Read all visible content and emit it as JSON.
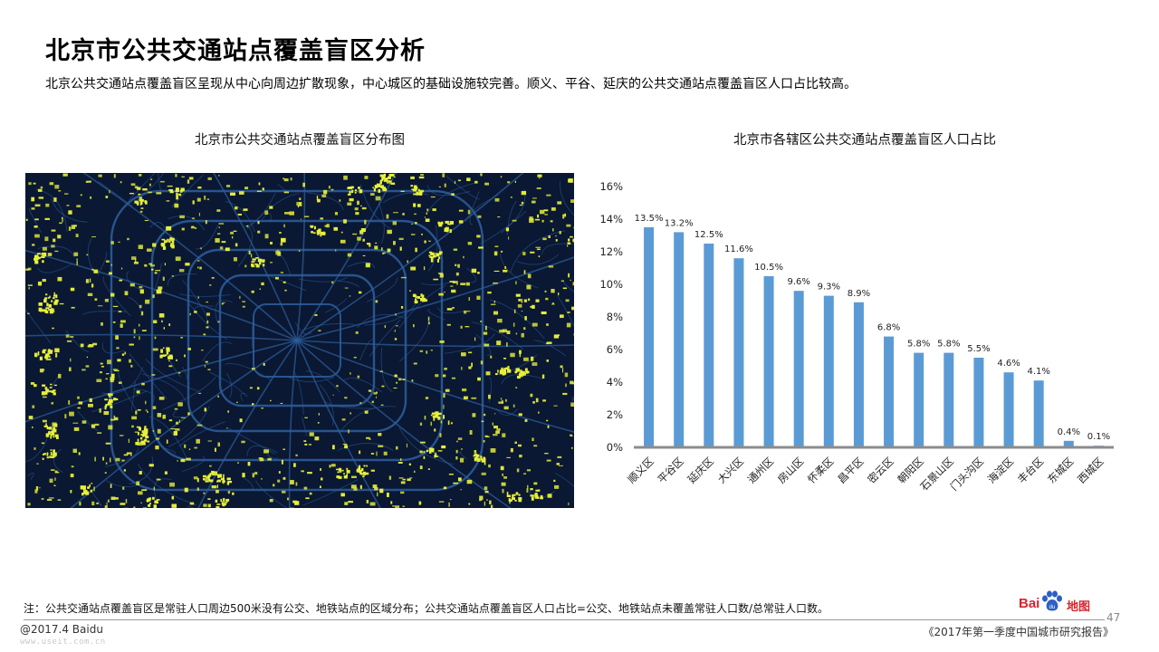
{
  "header": {
    "title": "北京市公共交通站点覆盖盲区分析",
    "subtitle": "北京公共交通站点覆盖盲区呈现从中心向周边扩散现象，中心城区的基础设施较完善。顺义、平谷、延庆的公共交通站点覆盖盲区人口占比较高。"
  },
  "map": {
    "title": "北京市公共交通站点覆盖盲区分布图",
    "colors": {
      "background": "#0a1833",
      "roads": "#2e5f9e",
      "blind_zones": "#e8f03a"
    }
  },
  "chart_data": {
    "type": "bar",
    "title": "北京市各辖区公共交通站点覆盖盲区人口占比",
    "categories": [
      "顺义区",
      "平谷区",
      "延庆区",
      "大兴区",
      "通州区",
      "房山区",
      "怀柔区",
      "昌平区",
      "密云区",
      "朝阳区",
      "石景山区",
      "门头沟区",
      "海淀区",
      "丰台区",
      "东城区",
      "西城区"
    ],
    "values": [
      13.5,
      13.2,
      12.5,
      11.6,
      10.5,
      9.6,
      9.3,
      8.9,
      6.8,
      5.8,
      5.8,
      5.5,
      4.6,
      4.1,
      0.4,
      0.1
    ],
    "data_labels": [
      "13.5%",
      "13.2%",
      "12.5%",
      "11.6%",
      "10.5%",
      "9.6%",
      "9.3%",
      "8.9%",
      "6.8%",
      "5.8%",
      "5.8%",
      "5.5%",
      "4.6%",
      "4.1%",
      "0.4%",
      "0.1%"
    ],
    "ylim": [
      0,
      16
    ],
    "yticks": [
      "0%",
      "2%",
      "4%",
      "6%",
      "8%",
      "10%",
      "12%",
      "14%",
      "16%"
    ],
    "grid": false,
    "legend": "none",
    "colors": {
      "bar": "#5b9bd5",
      "axis": "#8c8c8c"
    }
  },
  "footer": {
    "note": "注：公共交通站点覆盖盲区是常驻人口周边500米没有公交、地铁站点的区域分布；公共交通站点覆盖盲区人口占比=公交、地铁站点未覆盖常驻人口数/总常驻人口数。",
    "copyright": "@2017.4 Baidu",
    "watermark": "www.useit.com.cn",
    "report": "《2017年第一季度中国城市研究报告》",
    "page_number": "47",
    "logo_text": "Bai",
    "logo_cn": "地图",
    "logo_color": "#d9232d"
  }
}
